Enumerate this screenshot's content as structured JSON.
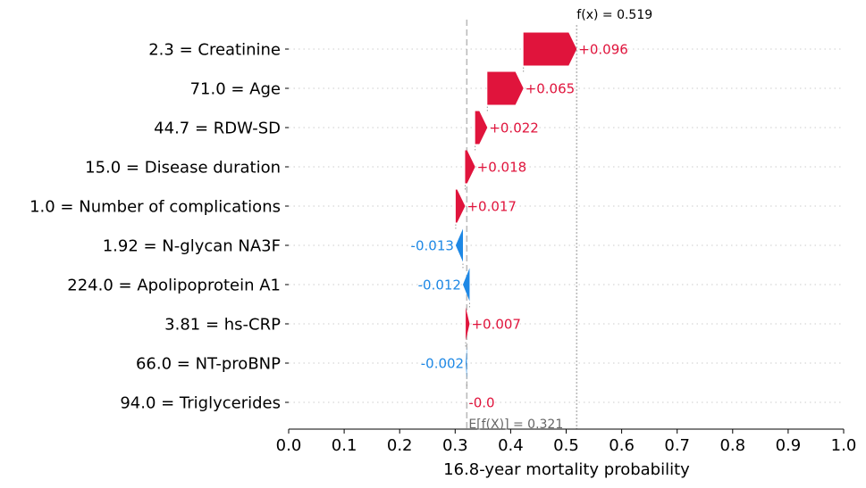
{
  "chart_data": {
    "type": "waterfall",
    "xlabel": "16.8-year mortality probability",
    "xlim": [
      0.0,
      1.0
    ],
    "x_ticks": [
      "0.0",
      "0.1",
      "0.2",
      "0.3",
      "0.4",
      "0.5",
      "0.6",
      "0.7",
      "0.8",
      "0.9",
      "1.0"
    ],
    "base_value": 0.321,
    "base_label": "E[f(X)] = 0.321",
    "output_value": 0.519,
    "output_label": "f(x) = 0.519",
    "features": [
      {
        "label": "2.3 = Creatinine",
        "value": 0.096,
        "value_label": "+0.096"
      },
      {
        "label": "71.0 = Age",
        "value": 0.065,
        "value_label": "+0.065"
      },
      {
        "label": "44.7 = RDW-SD",
        "value": 0.022,
        "value_label": "+0.022"
      },
      {
        "label": "15.0 = Disease duration",
        "value": 0.018,
        "value_label": "+0.018"
      },
      {
        "label": "1.0 = Number of complications",
        "value": 0.017,
        "value_label": "+0.017"
      },
      {
        "label": "1.92 = N-glycan NA3F",
        "value": -0.013,
        "value_label": "-0.013"
      },
      {
        "label": "224.0 = Apolipoprotein A1",
        "value": -0.012,
        "value_label": "-0.012"
      },
      {
        "label": "3.81 = hs-CRP",
        "value": 0.007,
        "value_label": "+0.007"
      },
      {
        "label": "66.0 = NT-proBNP",
        "value": -0.002,
        "value_label": "-0.002"
      },
      {
        "label": "94.0 = Triglycerides",
        "value": -0.0,
        "value_label": "-0.0"
      }
    ],
    "colors": {
      "positive": "#e0143c",
      "negative": "#1e88e5",
      "base_line": "#bbbbbb",
      "grid": "#cccccc"
    }
  }
}
